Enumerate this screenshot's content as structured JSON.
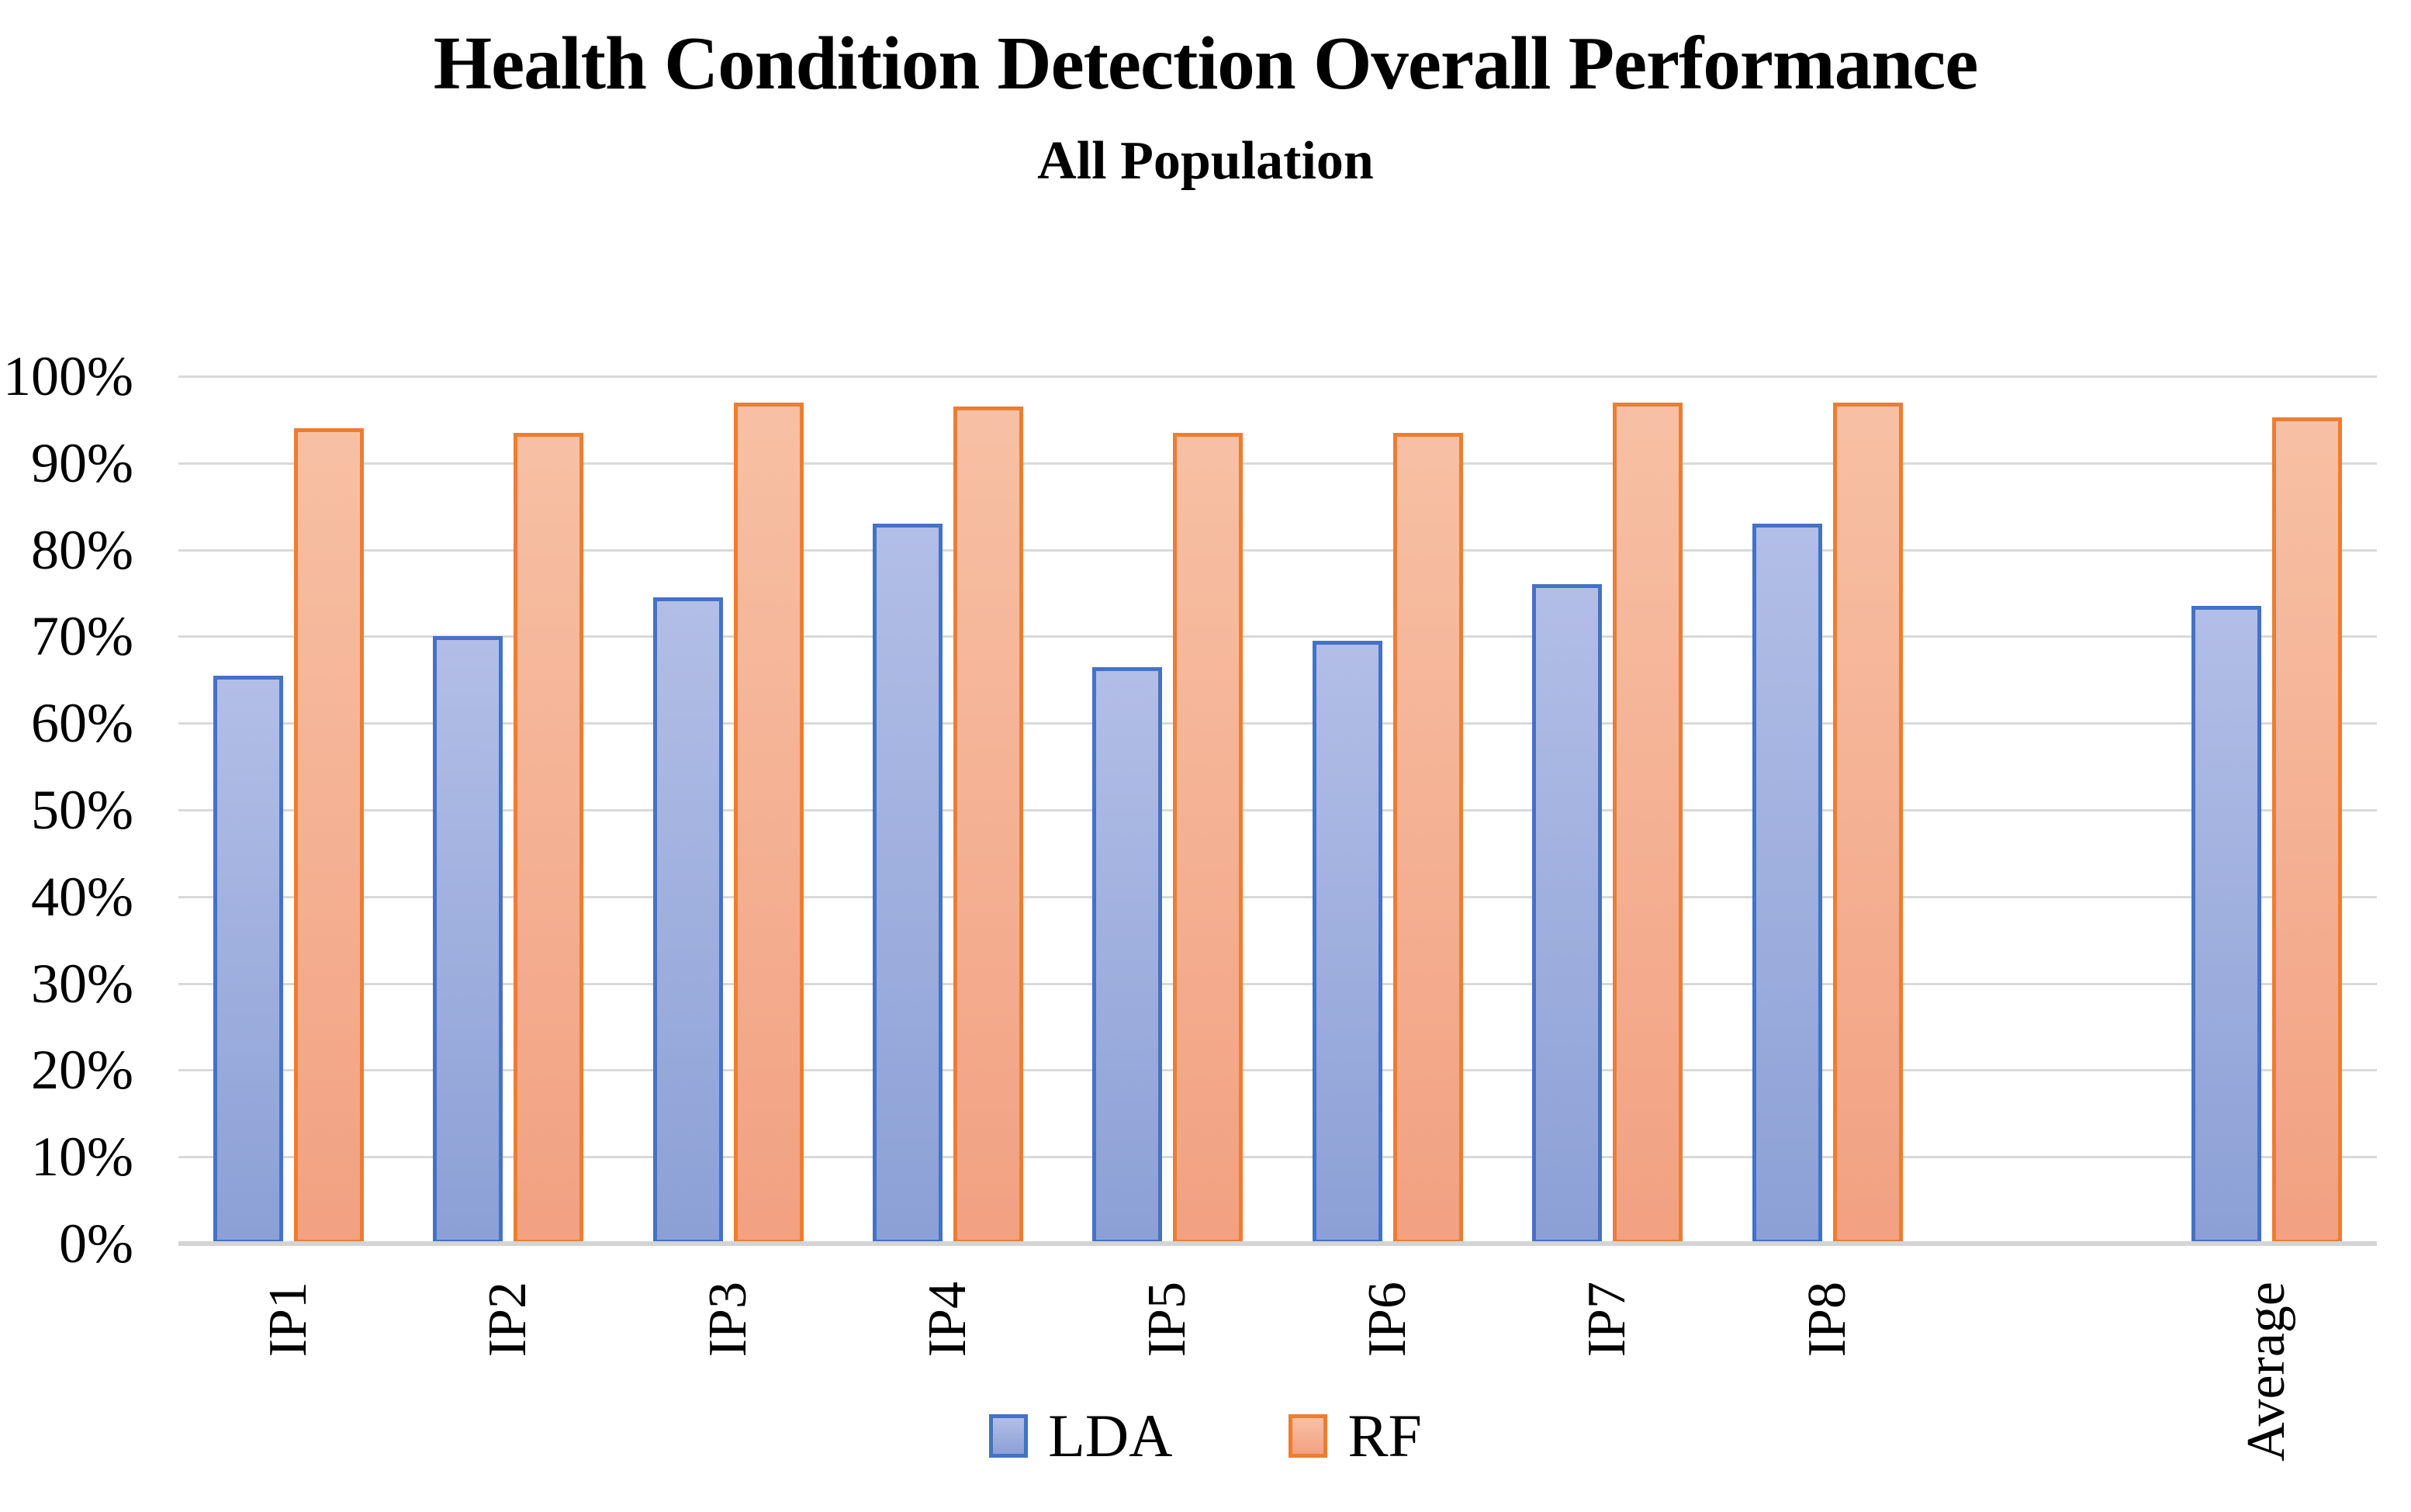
{
  "title": "Health Condition Detection Overall Performance",
  "subtitle": "All Population",
  "chart_data": {
    "type": "bar",
    "categories": [
      "IP1",
      "IP2",
      "IP3",
      "IP4",
      "IP5",
      "IP6",
      "IP7",
      "IP8",
      "Average"
    ],
    "series": [
      {
        "name": "LDA",
        "values": [
          65.5,
          70,
          74.5,
          83,
          66.5,
          69.5,
          76,
          83,
          73.5
        ]
      },
      {
        "name": "RF",
        "values": [
          94,
          93.5,
          97,
          96.5,
          93.5,
          93.5,
          97,
          97,
          95.3
        ]
      }
    ],
    "ylabel": "",
    "xlabel": "",
    "ylim": [
      0,
      100
    ],
    "ytick_step": 10,
    "ytick_labels": [
      "0%",
      "10%",
      "20%",
      "30%",
      "40%",
      "50%",
      "60%",
      "70%",
      "80%",
      "90%",
      "100%"
    ],
    "grid": true,
    "legend_position": "bottom",
    "layout_note": "one empty category slot between IP8 and Average",
    "slot_count": 10,
    "category_slot_indices": [
      0,
      1,
      2,
      3,
      4,
      5,
      6,
      7,
      9
    ]
  },
  "legend": {
    "items": [
      {
        "label": "LDA",
        "series": "LDA"
      },
      {
        "label": "RF",
        "series": "RF"
      }
    ]
  },
  "colors": {
    "lda_border": "#4472C4",
    "lda_fill_top": "#B2BEE6",
    "lda_fill_bottom": "#8CA0D6",
    "rf_border": "#ED7D31",
    "rf_fill_top": "#F7C0A4",
    "rf_fill_bottom": "#F2A182",
    "gridline": "#D9D9D9",
    "baseline": "#D4D4D4",
    "text": "#000000"
  }
}
